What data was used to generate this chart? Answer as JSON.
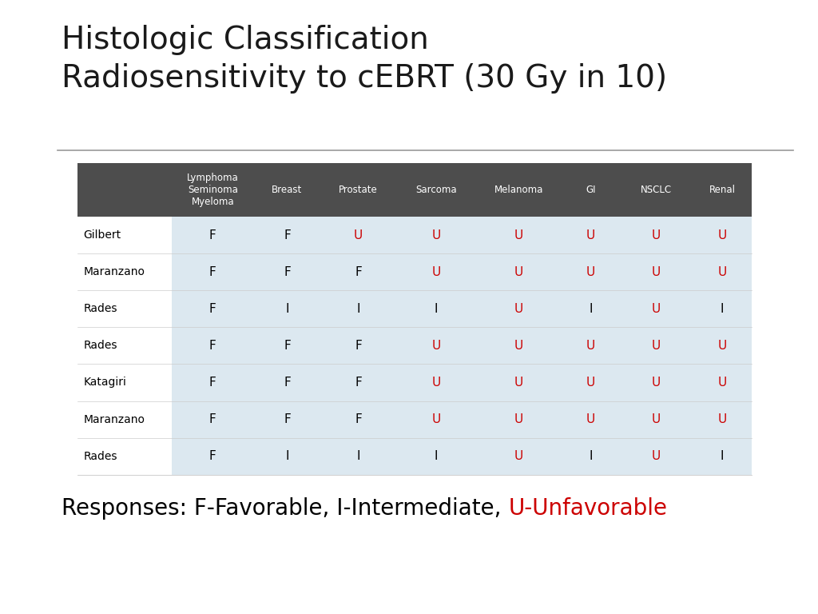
{
  "title_line1": "Histologic Classification",
  "title_line2": "Radiosensitivity to cEBRT (30 Gy in 10)",
  "header_cols": [
    "Lymphoma\nSeminoma\nMyeloma",
    "Breast",
    "Prostate",
    "Sarcoma",
    "Melanoma",
    "GI",
    "NSCLC",
    "Renal"
  ],
  "row_labels": [
    "Gilbert",
    "Maranzano",
    "Rades",
    "Rades",
    "Katagiri",
    "Maranzano",
    "Rades"
  ],
  "table_data": [
    [
      "F",
      "F",
      "U",
      "U",
      "U",
      "U",
      "U",
      "U"
    ],
    [
      "F",
      "F",
      "F",
      "U",
      "U",
      "U",
      "U",
      "U"
    ],
    [
      "F",
      "I",
      "I",
      "I",
      "U",
      "I",
      "U",
      "I"
    ],
    [
      "F",
      "F",
      "F",
      "U",
      "U",
      "U",
      "U",
      "U"
    ],
    [
      "F",
      "F",
      "F",
      "U",
      "U",
      "U",
      "U",
      "U"
    ],
    [
      "F",
      "F",
      "F",
      "U",
      "U",
      "U",
      "U",
      "U"
    ],
    [
      "F",
      "I",
      "I",
      "I",
      "U",
      "I",
      "U",
      "I"
    ]
  ],
  "footer_text_black": "Responses: F-Favorable, I-Intermediate, ",
  "footer_text_red": "U-Unfavorable",
  "header_bg": "#4d4d4d",
  "header_text_color": "#ffffff",
  "row_bg": "#dce8f0",
  "row_label_color": "#000000",
  "cell_F_color": "#000000",
  "cell_I_color": "#000000",
  "cell_U_color": "#cc0000",
  "title_color": "#1a1a1a",
  "footer_black_color": "#000000",
  "footer_red_color": "#cc0000",
  "background_color": "#ffffff",
  "title_fontsize": 28,
  "header_fontsize": 8.5,
  "cell_fontsize": 11,
  "row_label_fontsize": 10,
  "footer_fontsize": 20
}
